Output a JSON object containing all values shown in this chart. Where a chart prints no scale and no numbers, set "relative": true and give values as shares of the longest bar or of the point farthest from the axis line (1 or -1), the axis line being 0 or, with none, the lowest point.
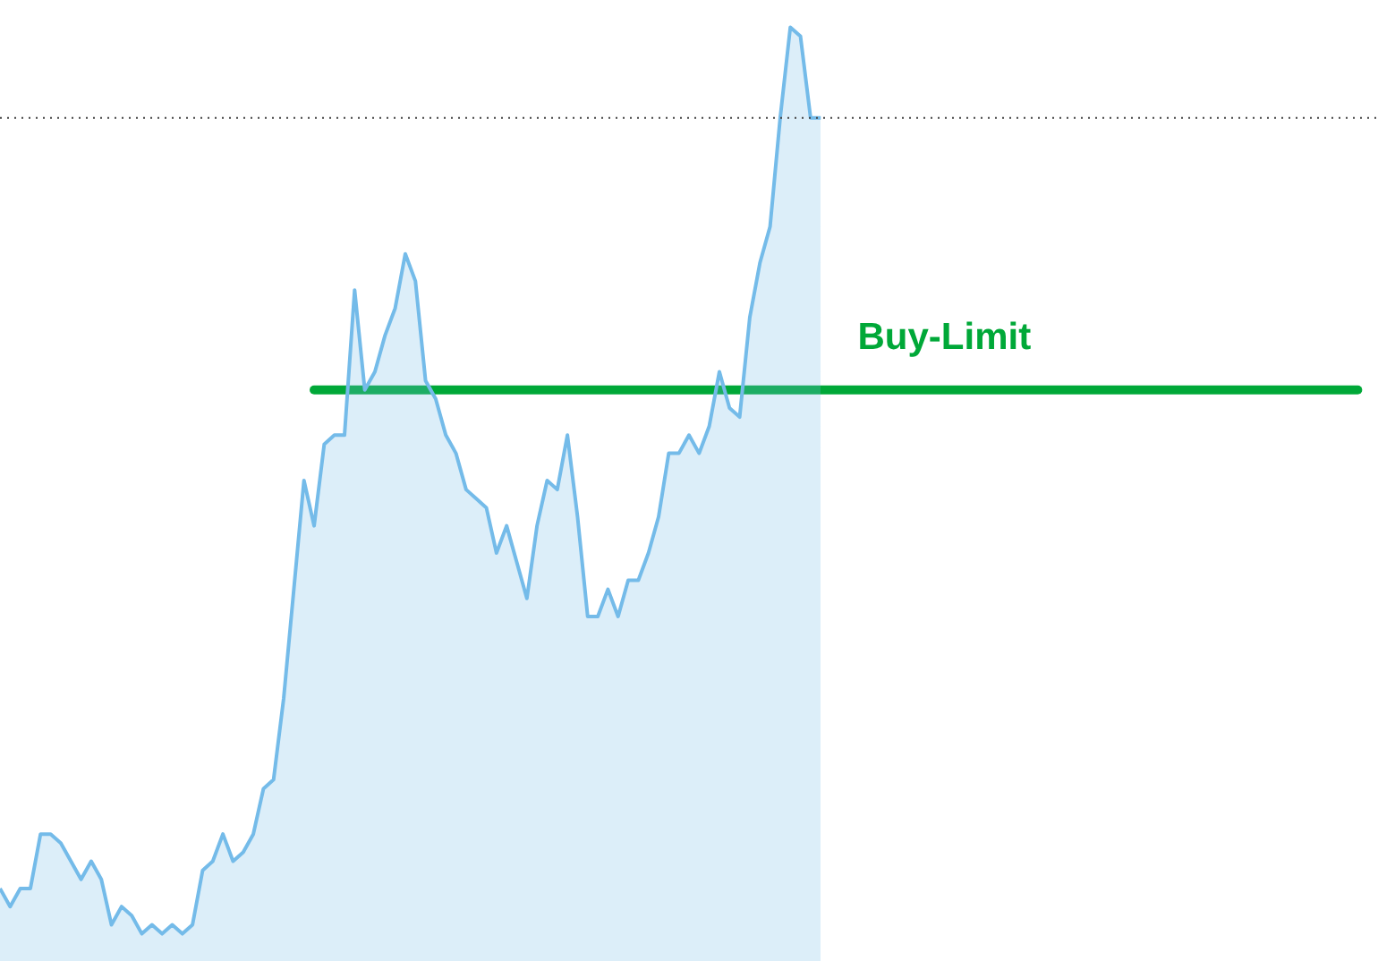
{
  "chart_data": {
    "type": "area",
    "relative": true,
    "legend": false,
    "grid": false,
    "tick_labels": false,
    "marker": "none",
    "categories": [
      null,
      null,
      null,
      null,
      null,
      null,
      null,
      null,
      null,
      null,
      null,
      null,
      null,
      null,
      null,
      null,
      null,
      null,
      null,
      null,
      null,
      null,
      null,
      null,
      null,
      null,
      null,
      null,
      null,
      null,
      null,
      null,
      null,
      null,
      null,
      null,
      null,
      null,
      null,
      null,
      null,
      null,
      null,
      null,
      null,
      null,
      null,
      null,
      null,
      null,
      null,
      null,
      null,
      null,
      null,
      null,
      null,
      null,
      null,
      null,
      null,
      null,
      null,
      null,
      null,
      null,
      null,
      null,
      null,
      null,
      null,
      null,
      null,
      null,
      null,
      null,
      null,
      null,
      null,
      null,
      null,
      null,
      null,
      null,
      null,
      null,
      null,
      null,
      null,
      null,
      null,
      null,
      null,
      null,
      null,
      null,
      null,
      null,
      null,
      null,
      null,
      null,
      null,
      null,
      null,
      null,
      null,
      null,
      null,
      null,
      null,
      null,
      null,
      null,
      null,
      null,
      null,
      null,
      null,
      null,
      null,
      null,
      null,
      null,
      null,
      null,
      null,
      null,
      null,
      null,
      null,
      null,
      null,
      null,
      null,
      null,
      null
    ],
    "series": [
      {
        "color": "#74bbe9",
        "values": [
          0.05,
          0.03,
          0.05,
          0.05,
          0.11,
          0.11,
          0.1,
          0.08,
          0.06,
          0.08,
          0.06,
          0.01,
          0.03,
          0.02,
          0,
          0.01,
          0,
          0.01,
          0,
          0.01,
          0.07,
          0.08,
          0.11,
          0.08,
          0.09,
          0.11,
          0.16,
          0.17,
          0.26,
          0.38,
          0.5,
          0.45,
          0.54,
          0.55,
          0.55,
          0.71,
          0.6,
          0.62,
          0.66,
          0.69,
          0.75,
          0.72,
          0.61,
          0.59,
          0.55,
          0.53,
          0.49,
          0.48,
          0.47,
          0.42,
          0.45,
          0.41,
          0.37,
          0.45,
          0.5,
          0.49,
          0.55,
          0.46,
          0.35,
          0.35,
          0.38,
          0.35,
          0.39,
          0.39,
          0.42,
          0.46,
          0.53,
          0.53,
          0.55,
          0.53,
          0.56,
          0.62,
          0.58,
          0.57,
          0.68,
          0.74,
          0.78,
          0.9,
          1,
          0.99,
          0.9,
          0.9,
          null,
          null,
          null,
          null,
          null,
          null,
          null,
          null,
          null,
          null,
          null,
          null,
          null,
          null,
          null,
          null,
          null,
          null,
          null,
          null,
          null,
          null,
          null,
          null,
          null,
          null,
          null,
          null,
          null,
          null,
          null,
          null,
          null,
          null,
          null,
          null,
          null,
          null,
          null,
          null,
          null,
          null,
          null,
          null,
          null,
          null,
          null,
          null,
          null,
          null,
          null,
          null,
          null,
          null,
          null
        ]
      },
      {
        "type": "line",
        "name": "Buy-Limit",
        "color": "#00a838",
        "values": [
          null,
          null,
          null,
          null,
          null,
          null,
          null,
          null,
          null,
          null,
          null,
          null,
          null,
          null,
          null,
          null,
          null,
          null,
          null,
          null,
          null,
          null,
          null,
          null,
          null,
          null,
          null,
          null,
          null,
          null,
          null,
          0.6,
          0.6,
          0.6,
          0.6,
          0.6,
          0.6,
          0.6,
          0.6,
          0.6,
          0.6,
          0.6,
          0.6,
          0.6,
          0.6,
          0.6,
          0.6,
          0.6,
          0.6,
          0.6,
          0.6,
          0.6,
          0.6,
          0.6,
          0.6,
          0.6,
          0.6,
          0.6,
          0.6,
          0.6,
          0.6,
          0.6,
          0.6,
          0.6,
          0.6,
          0.6,
          0.6,
          0.6,
          0.6,
          0.6,
          0.6,
          0.6,
          0.6,
          0.6,
          0.6,
          0.6,
          0.6,
          0.6,
          0.6,
          0.6,
          0.6,
          0.6,
          0.6,
          0.6,
          0.6,
          0.6,
          0.6,
          0.6,
          0.6,
          0.6,
          0.6,
          0.6,
          0.6,
          0.6,
          0.6,
          0.6,
          0.6,
          0.6,
          0.6,
          0.6,
          0.6,
          0.6,
          0.6,
          0.6,
          0.6,
          0.6,
          0.6,
          0.6,
          0.6,
          0.6,
          0.6,
          0.6,
          0.6,
          0.6,
          0.6,
          0.6,
          0.6,
          0.6,
          0.6,
          0.6,
          0.6,
          0.6,
          0.6,
          0.6,
          0.6,
          0.6,
          0.6,
          0.6,
          0.6,
          0.6,
          0.6,
          0.6,
          0.6,
          0.6,
          0.6,
          null,
          null
        ]
      }
    ],
    "ref_lines": [
      {
        "axis": "y",
        "value": 0.9,
        "color": "#444444",
        "line_style": "dotted"
      }
    ]
  }
}
